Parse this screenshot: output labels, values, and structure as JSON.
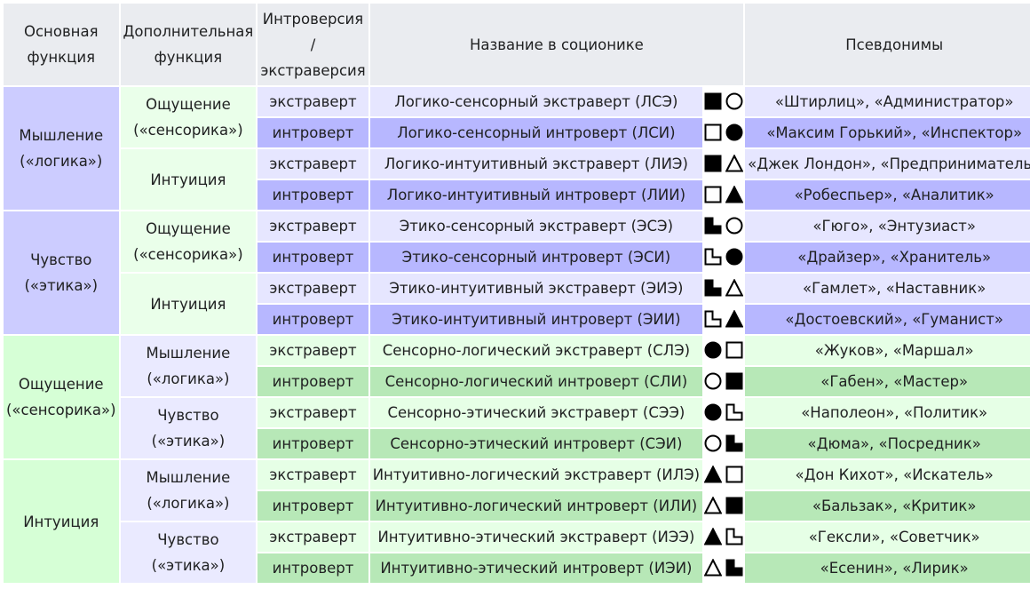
{
  "headers": {
    "main_function": "Основная функция",
    "aux_function": "Дополнительная функция",
    "io_top": "Интроверсия",
    "io_mid": "/",
    "io_bottom": "экстраверсия",
    "name": "Название в соционике",
    "aliases": "Псевдонимы"
  },
  "colors": {
    "header_bg": "#eaecf0",
    "blue_group": "#ccccff",
    "blue_sub": "#eaeaff",
    "blue_light": "#e6e6ff",
    "blue_dark": "#b7b7ff",
    "green_group": "#d6ffd6",
    "green_sub": "#eaffea",
    "green_light": "#e6ffe6",
    "green_dark": "#b7e8b7"
  },
  "groups": [
    {
      "label": "Мышление («логика»)",
      "theme": "blue"
    },
    {
      "label": "Чувство («этика»)",
      "theme": "blue"
    },
    {
      "label": "Ощущение («сенсорика»)",
      "theme": "green"
    },
    {
      "label": "Интуиция",
      "theme": "green"
    }
  ],
  "subgroups": [
    {
      "label": "Ощущение («сенсорика»)"
    },
    {
      "label": "Интуиция"
    },
    {
      "label": "Ощущение («сенсорика»)"
    },
    {
      "label": "Интуиция"
    },
    {
      "label": "Мышление («логика»)"
    },
    {
      "label": "Чувство («этика»)"
    },
    {
      "label": "Мышление («логика»)"
    },
    {
      "label": "Чувство («этика»)"
    }
  ],
  "rows": [
    {
      "io": "экстраверт",
      "name": "Логико-сенсорный экстраверт (ЛСЭ)",
      "symbols": [
        "black-square-icon",
        "white-circle-icon"
      ],
      "aliases": "«Штирлиц», «Администратор»"
    },
    {
      "io": "интроверт",
      "name": "Логико-сенсорный интроверт (ЛСИ)",
      "symbols": [
        "white-square-icon",
        "black-circle-icon"
      ],
      "aliases": "«Максим Горький», «Инспектор»"
    },
    {
      "io": "экстраверт",
      "name": "Логико-интуитивный экстраверт (ЛИЭ)",
      "symbols": [
        "black-square-icon",
        "white-triangle-icon"
      ],
      "aliases": "«Джек Лондон», «Предприниматель»"
    },
    {
      "io": "интроверт",
      "name": "Логико-интуитивный интроверт (ЛИИ)",
      "symbols": [
        "white-square-icon",
        "black-triangle-icon"
      ],
      "aliases": "«Робеспьер», «Аналитик»"
    },
    {
      "io": "экстраверт",
      "name": "Этико-сенсорный экстраверт (ЭСЭ)",
      "symbols": [
        "black-l-shape-icon",
        "white-circle-icon"
      ],
      "aliases": "«Гюго», «Энтузиаст»"
    },
    {
      "io": "интроверт",
      "name": "Этико-сенсорный интроверт (ЭСИ)",
      "symbols": [
        "white-l-shape-icon",
        "black-circle-icon"
      ],
      "aliases": "«Драйзер», «Хранитель»"
    },
    {
      "io": "экстраверт",
      "name": "Этико-интуитивный экстраверт (ЭИЭ)",
      "symbols": [
        "black-l-shape-icon",
        "white-triangle-icon"
      ],
      "aliases": "«Гамлет», «Наставник»"
    },
    {
      "io": "интроверт",
      "name": "Этико-интуитивный интроверт (ЭИИ)",
      "symbols": [
        "white-l-shape-icon",
        "black-triangle-icon"
      ],
      "aliases": "«Достоевский», «Гуманист»"
    },
    {
      "io": "экстраверт",
      "name": "Сенсорно-логический экстраверт (СЛЭ)",
      "symbols": [
        "black-circle-icon",
        "white-square-icon"
      ],
      "aliases": "«Жуков», «Маршал»"
    },
    {
      "io": "интроверт",
      "name": "Сенсорно-логический интроверт (СЛИ)",
      "symbols": [
        "white-circle-icon",
        "black-square-icon"
      ],
      "aliases": "«Габен», «Мастер»"
    },
    {
      "io": "экстраверт",
      "name": "Сенсорно-этический экстраверт (СЭЭ)",
      "symbols": [
        "black-circle-icon",
        "white-l-shape-icon"
      ],
      "aliases": "«Наполеон», «Политик»"
    },
    {
      "io": "интроверт",
      "name": "Сенсорно-этический интроверт (СЭИ)",
      "symbols": [
        "white-circle-icon",
        "black-l-shape-icon"
      ],
      "aliases": "«Дюма», «Посредник»"
    },
    {
      "io": "экстраверт",
      "name": "Интуитивно-логический экстраверт (ИЛЭ)",
      "symbols": [
        "black-triangle-icon",
        "white-square-icon"
      ],
      "aliases": "«Дон Кихот», «Искатель»"
    },
    {
      "io": "интроверт",
      "name": "Интуитивно-логический интроверт (ИЛИ)",
      "symbols": [
        "white-triangle-icon",
        "black-square-icon"
      ],
      "aliases": "«Бальзак», «Критик»"
    },
    {
      "io": "экстраверт",
      "name": "Интуитивно-этический экстраверт (ИЭЭ)",
      "symbols": [
        "black-triangle-icon",
        "white-l-shape-icon"
      ],
      "aliases": "«Гексли», «Советчик»"
    },
    {
      "io": "интроверт",
      "name": "Интуитивно-этический интроверт (ИЭИ)",
      "symbols": [
        "white-triangle-icon",
        "black-l-shape-icon"
      ],
      "aliases": "«Есенин», «Лирик»"
    }
  ]
}
